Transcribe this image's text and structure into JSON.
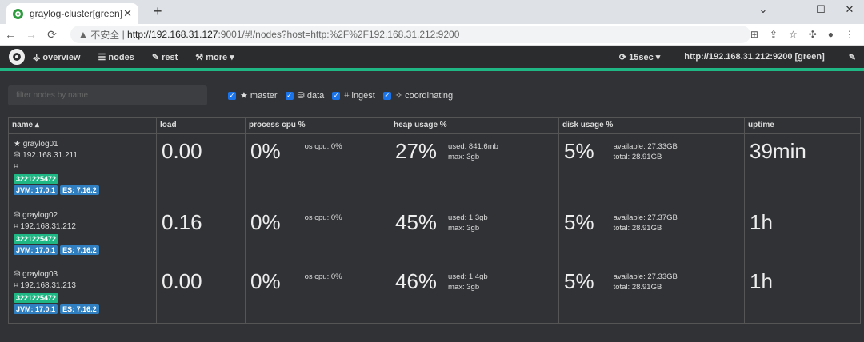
{
  "browser": {
    "tab_title": "graylog-cluster[green]",
    "security_label": "不安全",
    "url_host": "http://192.168.31.127",
    "url_rest": ":9001/#!/nodes?host=http:%2F%2F192.168.31.212:9200"
  },
  "nav": {
    "overview": "overview",
    "nodes": "nodes",
    "rest": "rest",
    "more": "more",
    "refresh": "15sec",
    "cluster": "http://192.168.31.212:9200 [green]"
  },
  "filter": {
    "placeholder": "filter nodes by name",
    "roles": [
      "master",
      "data",
      "ingest",
      "coordinating"
    ]
  },
  "table": {
    "headers": [
      "name ▴",
      "load",
      "process cpu %",
      "heap usage %",
      "disk usage %",
      "uptime"
    ],
    "rows": [
      {
        "name": "graylog01",
        "ip": "192.168.31.211",
        "id": "3221225472",
        "jvm": "JVM: 17.0.1",
        "es": "ES: 7.16.2",
        "load": "0.00",
        "cpu": "0%",
        "os_cpu": "os cpu: 0%",
        "heap": "27%",
        "heap_used": "used: 841.6mb",
        "heap_max": "max: 3gb",
        "disk": "5%",
        "disk_avail": "available: 27.33GB",
        "disk_total": "total: 28.91GB",
        "uptime": "39min",
        "roles": [
          "master",
          "data",
          "ingest"
        ]
      },
      {
        "name": "graylog02",
        "ip": "192.168.31.212",
        "id": "3221225472",
        "jvm": "JVM: 17.0.1",
        "es": "ES: 7.16.2",
        "load": "0.16",
        "cpu": "0%",
        "os_cpu": "os cpu: 0%",
        "heap": "45%",
        "heap_used": "used: 1.3gb",
        "heap_max": "max: 3gb",
        "disk": "5%",
        "disk_avail": "available: 27.37GB",
        "disk_total": "total: 28.91GB",
        "uptime": "1h",
        "roles": [
          "data",
          "ingest"
        ]
      },
      {
        "name": "graylog03",
        "ip": "192.168.31.213",
        "id": "3221225472",
        "jvm": "JVM: 17.0.1",
        "es": "ES: 7.16.2",
        "load": "0.00",
        "cpu": "0%",
        "os_cpu": "os cpu: 0%",
        "heap": "46%",
        "heap_used": "used: 1.4gb",
        "heap_max": "max: 3gb",
        "disk": "5%",
        "disk_avail": "available: 27.33GB",
        "disk_total": "total: 28.91GB",
        "uptime": "1h",
        "roles": [
          "data",
          "ingest"
        ]
      }
    ]
  }
}
